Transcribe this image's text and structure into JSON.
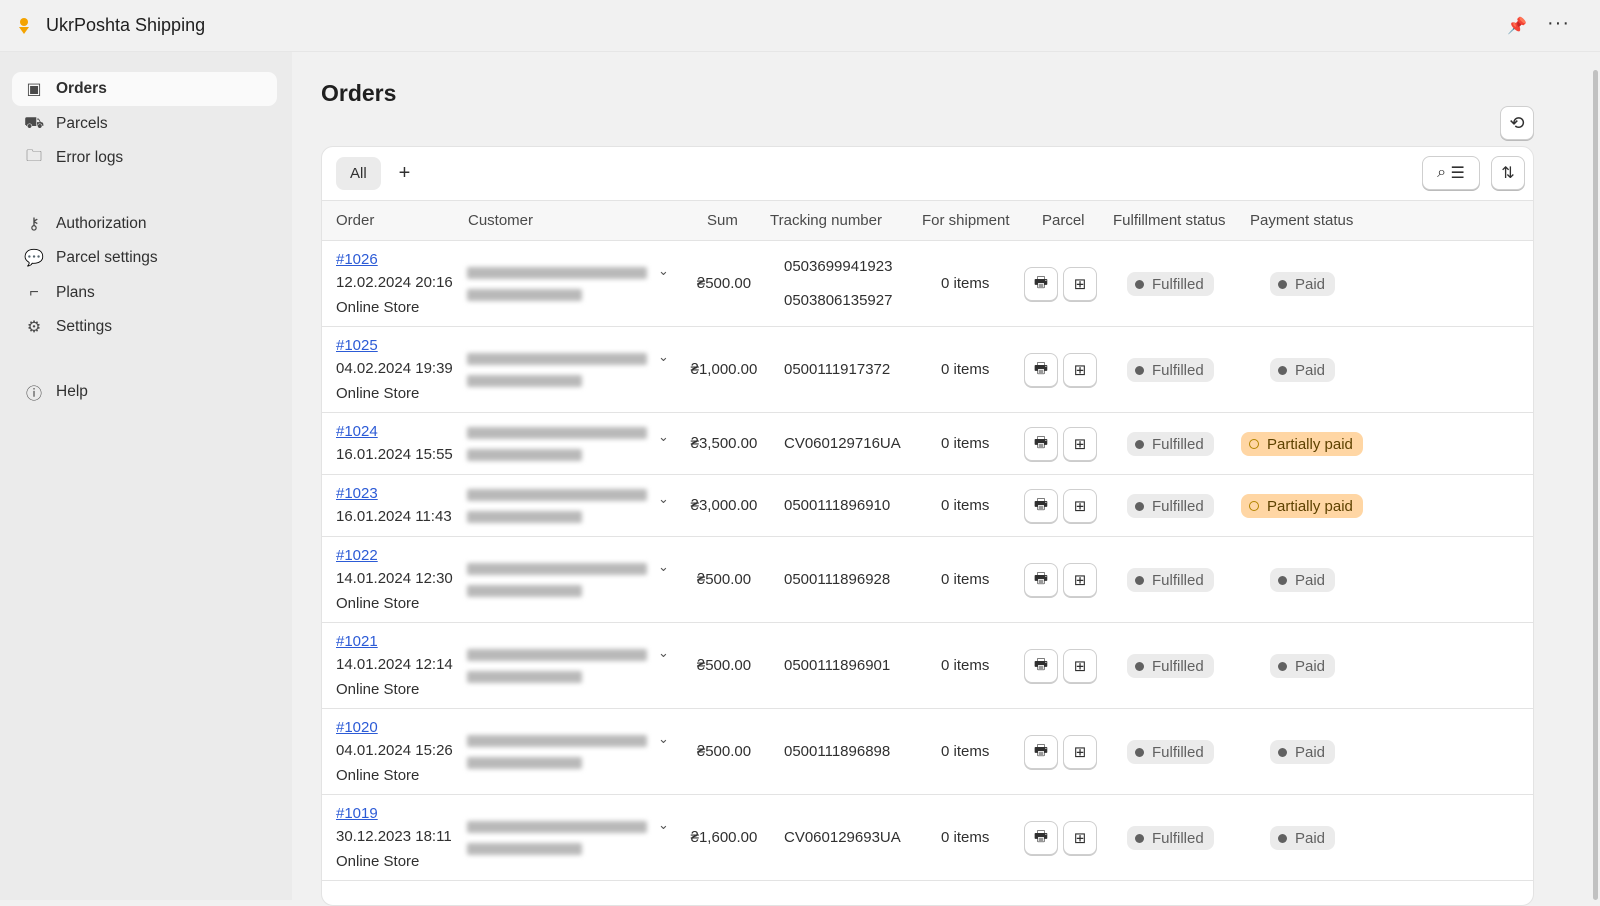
{
  "app": {
    "title": "UkrPoshta Shipping",
    "accent": "#f4a300"
  },
  "sidebar": {
    "items": [
      {
        "label": "Orders",
        "icon": "orders-icon",
        "active": true
      },
      {
        "label": "Parcels",
        "icon": "truck-icon"
      },
      {
        "label": "Error logs",
        "icon": "folder-icon"
      },
      {
        "label": "Authorization",
        "icon": "key-icon"
      },
      {
        "label": "Parcel settings",
        "icon": "chat-sparkle-icon"
      },
      {
        "label": "Plans",
        "icon": "stairs-icon"
      },
      {
        "label": "Settings",
        "icon": "gear-icon"
      },
      {
        "label": "Help",
        "icon": "help-icon"
      }
    ]
  },
  "page": {
    "title": "Orders"
  },
  "tabs": {
    "all": "All",
    "add": "+"
  },
  "columns": [
    "Order",
    "Customer",
    "Sum",
    "Tracking number",
    "For shipment",
    "Parcel",
    "Fulfillment status",
    "Payment status"
  ],
  "orders": [
    {
      "id": "#1026",
      "date": "12.02.2024 20:16",
      "source": "Online Store",
      "sum": "₴500.00",
      "tracking": [
        "0503699941923",
        "0503806135927"
      ],
      "shipment": "0 items",
      "fulfillment": "Fulfilled",
      "payment": "Paid"
    },
    {
      "id": "#1025",
      "date": "04.02.2024 19:39",
      "source": "Online Store",
      "sum": "₴1,000.00",
      "tracking": [
        "0500111917372"
      ],
      "shipment": "0 items",
      "fulfillment": "Fulfilled",
      "payment": "Paid"
    },
    {
      "id": "#1024",
      "date": "16.01.2024 15:55",
      "source": "",
      "sum": "₴3,500.00",
      "tracking": [
        "CV060129716UA"
      ],
      "shipment": "0 items",
      "fulfillment": "Fulfilled",
      "payment": "Partially paid"
    },
    {
      "id": "#1023",
      "date": "16.01.2024 11:43",
      "source": "",
      "sum": "₴3,000.00",
      "tracking": [
        "0500111896910"
      ],
      "shipment": "0 items",
      "fulfillment": "Fulfilled",
      "payment": "Partially paid"
    },
    {
      "id": "#1022",
      "date": "14.01.2024 12:30",
      "source": "Online Store",
      "sum": "₴500.00",
      "tracking": [
        "0500111896928"
      ],
      "shipment": "0 items",
      "fulfillment": "Fulfilled",
      "payment": "Paid"
    },
    {
      "id": "#1021",
      "date": "14.01.2024 12:14",
      "source": "Online Store",
      "sum": "₴500.00",
      "tracking": [
        "0500111896901"
      ],
      "shipment": "0 items",
      "fulfillment": "Fulfilled",
      "payment": "Paid"
    },
    {
      "id": "#1020",
      "date": "04.01.2024 15:26",
      "source": "Online Store",
      "sum": "₴500.00",
      "tracking": [
        "0500111896898"
      ],
      "shipment": "0 items",
      "fulfillment": "Fulfilled",
      "payment": "Paid"
    },
    {
      "id": "#1019",
      "date": "30.12.2023 18:11",
      "source": "Online Store",
      "sum": "₴1,600.00",
      "tracking": [
        "CV060129693UA"
      ],
      "shipment": "0 items",
      "fulfillment": "Fulfilled",
      "payment": "Paid"
    }
  ]
}
